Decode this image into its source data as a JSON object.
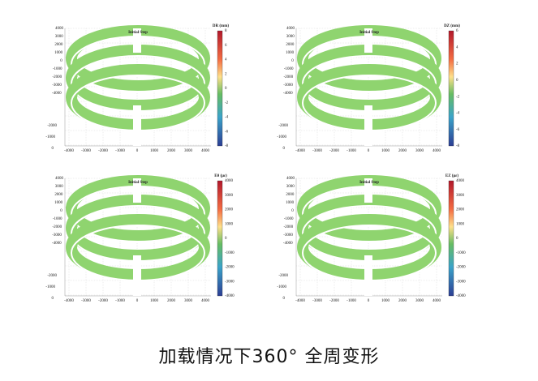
{
  "panels": [
    {
      "title": "Initial Step",
      "colorbar_label": "DR (mm)",
      "colorbar_ticks": [
        "8",
        "6",
        "4",
        "2",
        "0",
        "-2",
        "-4",
        "-6",
        "-8"
      ],
      "x_ticks": [
        "-4000",
        "-3000",
        "-2000",
        "-1000",
        "0",
        "1000",
        "2000",
        "3000",
        "4000"
      ],
      "y_ticks": [
        "4000",
        "3000",
        "2000",
        "1000",
        "0",
        "-1000",
        "-2000",
        "-3000",
        "-4000"
      ],
      "z_ticks": [
        "-2000",
        "-1000",
        "0"
      ]
    },
    {
      "title": "Initial Step",
      "colorbar_label": "DZ (mm)",
      "colorbar_ticks": [
        "6",
        "4",
        "2",
        "0",
        "-2",
        "-4",
        "-6",
        "-8"
      ],
      "x_ticks": [
        "-4000",
        "-3000",
        "-2000",
        "-1000",
        "0",
        "1000",
        "2000",
        "3000",
        "4000"
      ],
      "y_ticks": [
        "4000",
        "3000",
        "2000",
        "1000",
        "0",
        "-1000",
        "-2000",
        "-3000",
        "-4000"
      ],
      "z_ticks": [
        "-2000",
        "-1000",
        "0"
      ]
    },
    {
      "title": "Initial Step",
      "colorbar_label": "Eθ (με)",
      "colorbar_ticks": [
        "4000",
        "3000",
        "2000",
        "1000",
        "0",
        "-1000",
        "-2000",
        "-3000",
        "-4000"
      ],
      "x_ticks": [
        "-4000",
        "-3000",
        "-2000",
        "-1000",
        "0",
        "1000",
        "2000",
        "3000",
        "4000"
      ],
      "y_ticks": [
        "4000",
        "3000",
        "2000",
        "1000",
        "0",
        "-1000",
        "-2000",
        "-3000",
        "-4000"
      ],
      "z_ticks": [
        "-2000",
        "-1000",
        "0"
      ]
    },
    {
      "title": "Initial Step",
      "colorbar_label": "EZ (με)",
      "colorbar_ticks": [
        "4000",
        "3000",
        "2000",
        "1000",
        "0",
        "-1000",
        "-2000",
        "-3000",
        "-4000"
      ],
      "x_ticks": [
        "-4000",
        "-3000",
        "-2000",
        "-1000",
        "0",
        "1000",
        "2000",
        "3000",
        "4000"
      ],
      "y_ticks": [
        "4000",
        "3000",
        "2000",
        "1000",
        "0",
        "-1000",
        "-2000",
        "-3000",
        "-4000"
      ],
      "z_ticks": [
        "-2000",
        "-1000",
        "0"
      ]
    }
  ],
  "caption": "加载情况下360° 全周变形"
}
